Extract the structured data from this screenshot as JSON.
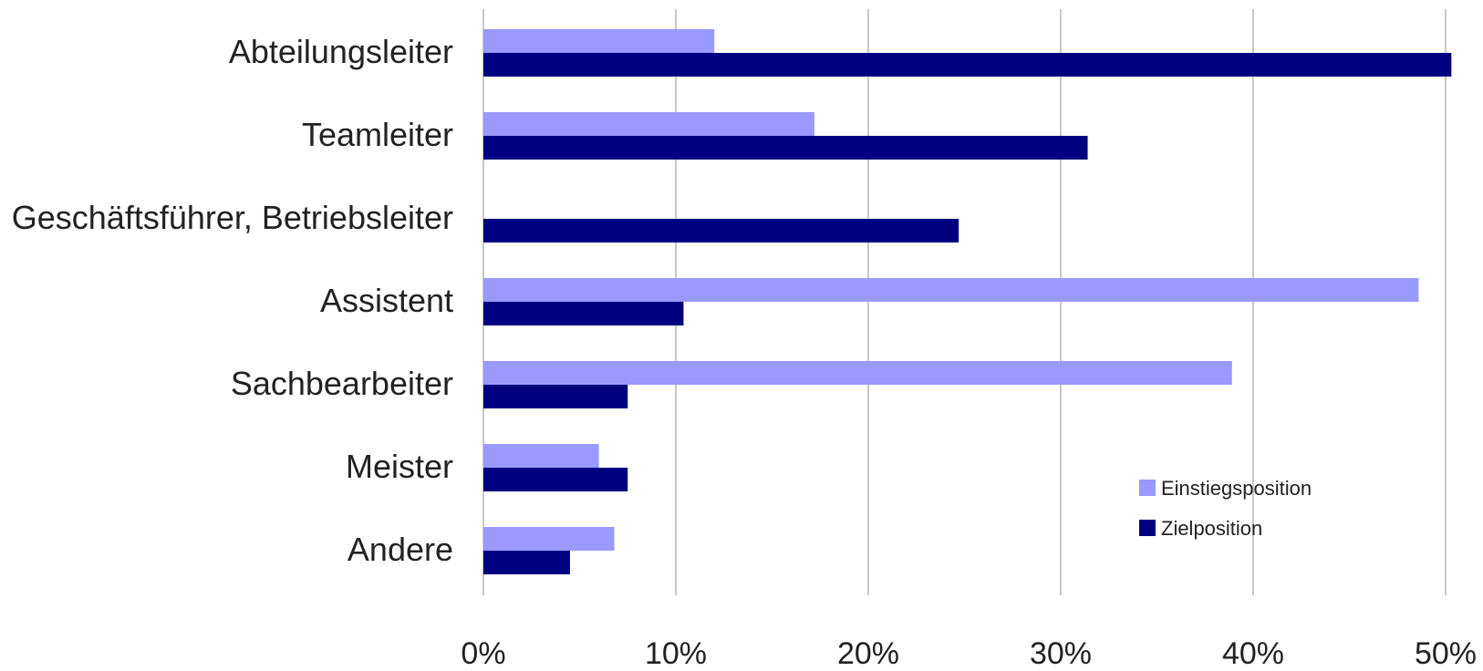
{
  "chart_data": {
    "type": "bar",
    "orientation": "horizontal",
    "categories": [
      "Abteilungsleiter",
      "Teamleiter",
      "Geschäftsführer, Betriebsleiter",
      "Assistent",
      "Sachbearbeiter",
      "Meister",
      "Andere"
    ],
    "series": [
      {
        "name": "Einstiegsposition",
        "color": "#9999ff",
        "values": [
          12,
          17.2,
          0,
          48.6,
          38.9,
          6,
          6.8
        ]
      },
      {
        "name": "Zielposition",
        "color": "#000080",
        "values": [
          50.3,
          31.4,
          24.7,
          10.4,
          7.5,
          7.5,
          4.5
        ]
      }
    ],
    "x_ticks": [
      "0%",
      "10%",
      "20%",
      "30%",
      "40%",
      "50%"
    ],
    "xlim": [
      0,
      50
    ],
    "title": "",
    "xlabel": "",
    "ylabel": "",
    "grid": "vertical",
    "legend_position": "lower-right"
  }
}
